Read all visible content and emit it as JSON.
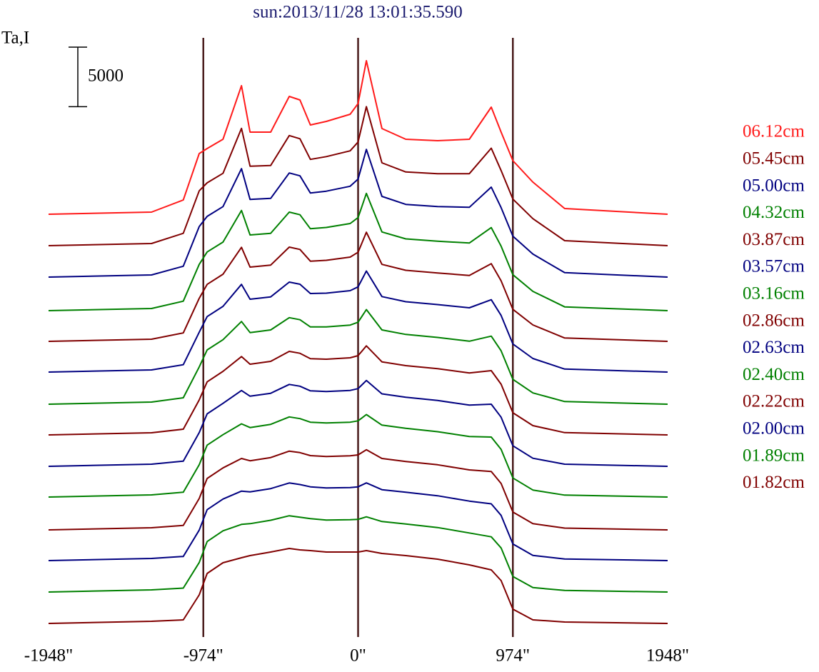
{
  "chart_data": {
    "type": "line",
    "title": "sun:2013/11/28 13:01:35.590",
    "y_label": "Ta,I",
    "scale_bar": 5000,
    "x": [
      -1948,
      -1300,
      -1100,
      -1000,
      -950,
      -850,
      -734,
      -680,
      -550,
      -433,
      -366,
      -300,
      -200,
      -50,
      0,
      52,
      150,
      300,
      500,
      700,
      838,
      900,
      974,
      1100,
      1300,
      1948
    ],
    "xlim": [
      -1948,
      1948
    ],
    "xticks": [
      {
        "value": -1948,
        "label": "-1948\""
      },
      {
        "value": -974,
        "label": "-974\""
      },
      {
        "value": 0,
        "label": "0\""
      },
      {
        "value": 974,
        "label": "974\""
      },
      {
        "value": 1948,
        "label": "1948\""
      }
    ],
    "ylim": [
      0,
      49500
    ],
    "series": [
      {
        "name": "06.12cm",
        "color": "#ff1a1a",
        "values": [
          35520,
          35700,
          36720,
          40620,
          41040,
          41820,
          46320,
          42420,
          42420,
          45420,
          45120,
          43020,
          43320,
          43920,
          44820,
          48420,
          42720,
          41820,
          41700,
          41820,
          44520,
          42420,
          40020,
          38220,
          36000,
          35520
        ]
      },
      {
        "name": "05.45cm",
        "color": "#800000",
        "values": [
          32880,
          33060,
          33920,
          37490,
          38160,
          38960,
          42730,
          39560,
          39620,
          42130,
          41860,
          40130,
          40360,
          40850,
          41590,
          44560,
          39840,
          39070,
          38920,
          38930,
          41070,
          39190,
          36790,
          35150,
          33300,
          32880
        ]
      },
      {
        "name": "05.00cm",
        "color": "#000080",
        "values": [
          30240,
          30420,
          31150,
          34480,
          35340,
          36160,
          39350,
          36760,
          36850,
          38990,
          38750,
          37300,
          37460,
          37870,
          38480,
          40970,
          37020,
          36350,
          36170,
          36100,
          37800,
          36080,
          33680,
          32170,
          30610,
          30240
        ]
      },
      {
        "name": "04.32cm",
        "color": "#008000",
        "values": [
          27420,
          27600,
          28220,
          31310,
          32350,
          33180,
          35840,
          33780,
          33920,
          35700,
          35480,
          34300,
          34410,
          34740,
          35240,
          37270,
          34030,
          33450,
          33250,
          33100,
          34400,
          32840,
          30440,
          29040,
          27740,
          27420
        ]
      },
      {
        "name": "03.87cm",
        "color": "#800000",
        "values": [
          24840,
          25020,
          25550,
          28460,
          29630,
          30480,
          32740,
          31080,
          31250,
          32760,
          32560,
          31580,
          31650,
          31920,
          32330,
          34010,
          31310,
          30810,
          30590,
          30380,
          31370,
          29930,
          27530,
          26220,
          25120,
          24840
        ]
      },
      {
        "name": "03.57cm",
        "color": "#000080",
        "values": [
          22260,
          22440,
          22880,
          25610,
          26920,
          27780,
          29630,
          28380,
          28580,
          29820,
          29640,
          28860,
          28890,
          29100,
          29420,
          30750,
          28600,
          28170,
          27930,
          27660,
          28340,
          27020,
          24620,
          23400,
          22510,
          22260
        ]
      },
      {
        "name": "03.16cm",
        "color": "#008000",
        "values": [
          19560,
          19740,
          20100,
          22690,
          24120,
          24980,
          26510,
          25580,
          25800,
          26830,
          26660,
          26050,
          26050,
          26210,
          26450,
          27510,
          25800,
          25420,
          25170,
          24850,
          25280,
          24050,
          21650,
          20510,
          19780,
          19560
        ]
      },
      {
        "name": "02.86cm",
        "color": "#800000",
        "values": [
          16980,
          17160,
          17460,
          19920,
          21440,
          22320,
          23560,
          22920,
          23160,
          24000,
          23840,
          23380,
          23340,
          23460,
          23640,
          24460,
          23120,
          22800,
          22540,
          22180,
          22380,
          21240,
          18840,
          17760,
          17170,
          16980
        ]
      },
      {
        "name": "02.63cm",
        "color": "#000080",
        "values": [
          14340,
          14520,
          14780,
          17170,
          18750,
          19630,
          20710,
          20230,
          20480,
          21220,
          21070,
          20680,
          20630,
          20720,
          20870,
          21550,
          20430,
          20140,
          19870,
          19480,
          19560,
          18470,
          16070,
          15020,
          14520,
          14340
        ]
      },
      {
        "name": "02.40cm",
        "color": "#008000",
        "values": [
          11760,
          11940,
          12170,
          14480,
          16120,
          17000,
          17910,
          17600,
          17870,
          18490,
          18350,
          18050,
          17980,
          18050,
          18160,
          18690,
          17800,
          17530,
          17250,
          16850,
          16800,
          15760,
          13360,
          12350,
          11920,
          11760
        ]
      },
      {
        "name": "02.22cm",
        "color": "#800000",
        "values": [
          9000,
          9180,
          9380,
          11640,
          13320,
          14210,
          15000,
          14810,
          15080,
          15620,
          15490,
          15240,
          15160,
          15220,
          15300,
          15730,
          15000,
          14750,
          14470,
          14040,
          13910,
          12900,
          10500,
          9520,
          9150,
          9000
        ]
      },
      {
        "name": "02.00cm",
        "color": "#000080",
        "values": [
          6420,
          6600,
          6770,
          8980,
          10700,
          11590,
          12260,
          12190,
          12470,
          12940,
          12810,
          12620,
          12530,
          12560,
          12620,
          12950,
          12380,
          12160,
          11870,
          11420,
          11190,
          10220,
          7820,
          6860,
          6560,
          6420
        ]
      },
      {
        "name": "01.89cm",
        "color": "#008000",
        "values": [
          3780,
          3960,
          4110,
          6260,
          8020,
          8920,
          9460,
          9520,
          9810,
          10190,
          10060,
          9940,
          9830,
          9850,
          9880,
          10100,
          9700,
          9500,
          9200,
          8740,
          8420,
          7480,
          5080,
          4150,
          3910,
          3780
        ]
      },
      {
        "name": "01.82cm",
        "color": "#800000",
        "values": [
          1140,
          1320,
          1440,
          3540,
          5340,
          6240,
          6660,
          6840,
          7140,
          7440,
          7320,
          7260,
          7140,
          7140,
          7140,
          7260,
          7020,
          6840,
          6540,
          6060,
          5640,
          4740,
          2340,
          1440,
          1260,
          1140
        ]
      }
    ],
    "grid_color": "#4a1c1c"
  }
}
